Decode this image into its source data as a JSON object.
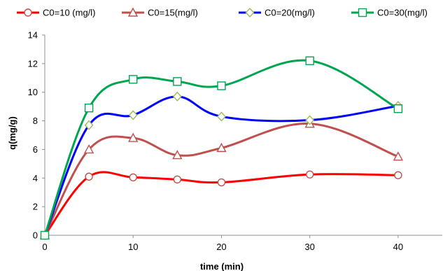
{
  "chart_data": {
    "type": "line",
    "xlabel": "time (min)",
    "ylabel": "q(mg/g)",
    "xlim": [
      0,
      45
    ],
    "ylim": [
      0,
      14
    ],
    "xticks": [
      0,
      10,
      20,
      30,
      40
    ],
    "yticks": [
      0,
      2,
      4,
      6,
      8,
      10,
      12,
      14
    ],
    "grid": false,
    "legend_position": "top",
    "smooth_lines": true,
    "x": [
      0,
      5,
      10,
      15,
      20,
      30,
      40
    ],
    "series": [
      {
        "name": "C0=10 (mg/l)",
        "marker": "circle",
        "color": "#ff0000",
        "marker_edge": "#c0504d",
        "values": [
          0,
          4.1,
          4.05,
          3.9,
          3.7,
          4.25,
          4.2
        ]
      },
      {
        "name": "C0=15(mg/l)",
        "marker": "triangle",
        "color": "#c0504d",
        "marker_edge": "#c0504d",
        "values": [
          0,
          6.0,
          6.8,
          5.6,
          6.1,
          7.8,
          5.5
        ]
      },
      {
        "name": "C0=20(mg/l)",
        "marker": "diamond",
        "color": "#0000ff",
        "marker_edge": "#9bbb59",
        "values": [
          0,
          7.7,
          8.4,
          9.7,
          8.3,
          8.05,
          9.05
        ]
      },
      {
        "name": "C0=30(mg/l)",
        "marker": "square",
        "color": "#00a550",
        "marker_edge": "#00a550",
        "values": [
          0,
          8.9,
          10.9,
          10.75,
          10.45,
          12.2,
          8.85
        ]
      }
    ]
  }
}
